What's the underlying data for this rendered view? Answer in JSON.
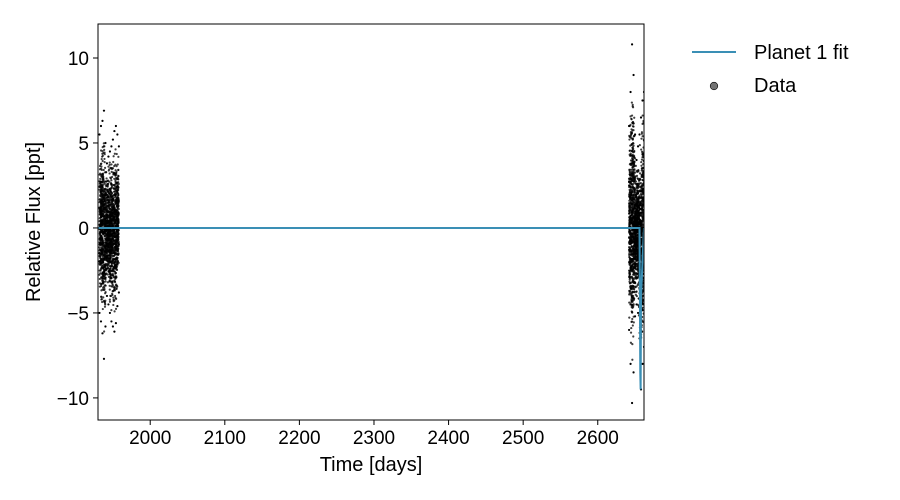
{
  "chart_data": {
    "type": "scatter",
    "xlabel": "Time [days]",
    "ylabel": "Relative Flux [ppt]",
    "xlim": [
      1930,
      2662
    ],
    "ylim": [
      -11.3,
      12.0
    ],
    "xticks": [
      2000,
      2100,
      2200,
      2300,
      2400,
      2500,
      2600
    ],
    "xtick_labels": [
      "2000",
      "2100",
      "2200",
      "2300",
      "2400",
      "2500",
      "2600"
    ],
    "yticks": [
      10,
      5,
      0,
      -5,
      -10
    ],
    "ytick_labels": [
      "10",
      "5",
      "0",
      "−5",
      "−10"
    ],
    "grid": false,
    "legend_position": "outside-right",
    "series": [
      {
        "name": "Planet 1 fit",
        "kind": "line",
        "color": "#3a8fb5",
        "x": [
          1930,
          2656,
          2656.5,
          2657,
          2657.5,
          2658,
          2662
        ],
        "y": [
          0,
          0,
          -4,
          -8.5,
          -9.5,
          -4,
          0
        ]
      },
      {
        "name": "Data",
        "kind": "scatter",
        "color": "#000000",
        "segments": [
          {
            "x": [
              1932,
              1934,
              1936,
              1938,
              1940,
              1942,
              1944,
              1946,
              1948,
              1950,
              1952,
              1954,
              1956,
              1958
            ],
            "y_max": [
              5.5,
              6.0,
              6.3,
              6.9,
              5.0,
              3.8,
              4.2,
              4.5,
              4.8,
              5.2,
              5.7,
              6.0,
              5.5,
              4.8
            ],
            "y_min": [
              -5.0,
              -5.5,
              -6.2,
              -7.7,
              -5.8,
              -4.0,
              -4.5,
              -5.0,
              -5.5,
              -5.8,
              -6.1,
              -5.6,
              -4.6,
              -3.8
            ]
          },
          {
            "x": [
              2642,
              2644,
              2646,
              2648,
              2650,
              2652,
              2654,
              2656,
              2658,
              2660,
              2662
            ],
            "y_max": [
              6.0,
              8.0,
              10.8,
              9.0,
              5.5,
              4.0,
              4.8,
              5.5,
              6.5,
              7.5,
              8.0
            ],
            "y_min": [
              -6.0,
              -8.0,
              -10.3,
              -8.5,
              -5.2,
              -4.5,
              -5.0,
              -6.5,
              -9.5,
              -8.0,
              -7.0
            ]
          }
        ]
      }
    ]
  }
}
